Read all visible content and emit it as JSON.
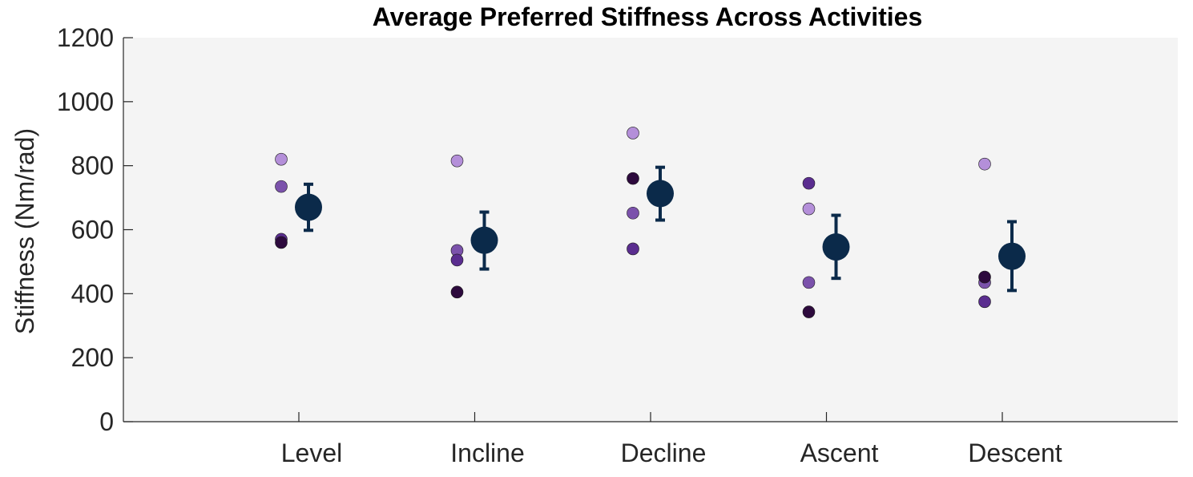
{
  "chart_data": {
    "type": "scatter",
    "title": "Average Preferred Stiffness Across Activities",
    "xlabel": "",
    "ylabel": "Stiffness (Nm/rad)",
    "categories": [
      "Level",
      "Incline",
      "Decline",
      "Ascent",
      "Descent"
    ],
    "ylim": [
      0,
      1200
    ],
    "yticks": [
      0,
      200,
      400,
      600,
      800,
      1000,
      1200
    ],
    "grid": false,
    "legend": "none",
    "subjects": [
      {
        "color": "#b48fd9",
        "values": [
          820,
          815,
          902,
          665,
          805
        ]
      },
      {
        "color": "#7b52ab",
        "values": [
          735,
          535,
          652,
          435,
          435
        ]
      },
      {
        "color": "#5a2d8f",
        "values": [
          570,
          505,
          540,
          745,
          375
        ]
      },
      {
        "color": "#2d0a3d",
        "values": [
          560,
          405,
          760,
          343,
          452
        ]
      }
    ],
    "mean": {
      "color": "#0b2a4a",
      "values": [
        670,
        567,
        713,
        546,
        517
      ],
      "error_low": [
        598,
        477,
        630,
        448,
        410
      ],
      "error_high": [
        742,
        655,
        795,
        645,
        625
      ]
    },
    "colors": {
      "plot_background": "#f4f4f4",
      "axis": "#262626"
    }
  }
}
